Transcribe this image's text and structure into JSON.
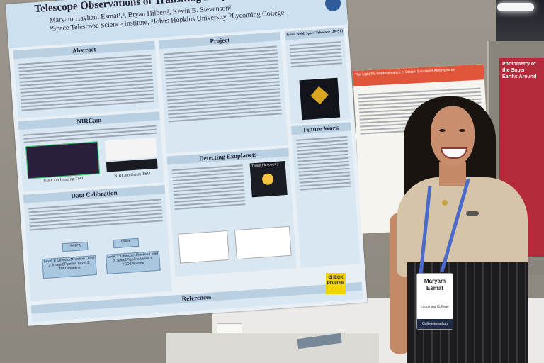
{
  "poster": {
    "title": "Telescope Observations of Transiting Exoplanets",
    "authors": "Maryam Hayham Esmat¹,³, Bryan Hilbert², Kevin B. Stevenson²",
    "institutions": "¹Space Telescope Science Institute, ²Johns Hopkins University, ³Lycoming College",
    "sections": {
      "abstract": "Abstract",
      "nircam": "NIRCam",
      "data_calibration": "Data Calibration",
      "project": "Project",
      "detecting": "Detecting Exoplanets",
      "jwst": "James Webb Space Telescope (JWST)",
      "future": "Future Work",
      "references": "References"
    },
    "captions": {
      "imaging": "NIRCam Imaging TSO",
      "grism": "NIRCam Grism TSO"
    },
    "flow": {
      "imaging": "Imaging",
      "grism": "Grism"
    },
    "pipeline_boxes": {
      "imaging_levels": "Level 1: Detector1Pipeline Level 2: Image2Pipeline Level 3: TSO3Pipeline",
      "grism_levels": "Level 1: Detector1Pipeline Level 2: Spec2Pipeline Level 3: TSO3Pipeline"
    },
    "transit_label": "Transit Photometry"
  },
  "poster2": {
    "header": "The Light Re-Representation of Distant Exoplanet Atmospheres"
  },
  "poster3": {
    "header": "Photometry of the Super Earths Around"
  },
  "sign": {
    "line1": "CHECK",
    "line2": "POSTER"
  },
  "badge": {
    "first_name": "Maryam",
    "last_name": "Esmat",
    "affiliation": "Lycoming College",
    "footer": "Collegetownhub"
  }
}
